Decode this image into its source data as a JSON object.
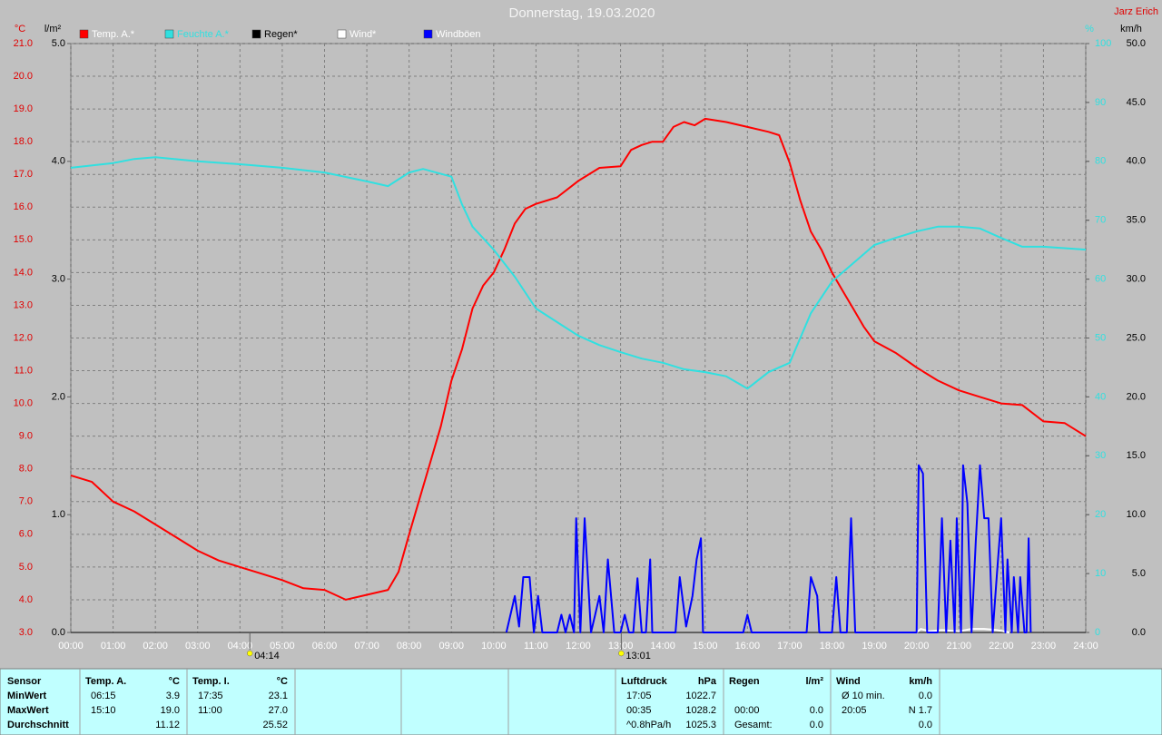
{
  "chart_data": {
    "type": "line",
    "title": "Donnerstag, 19.03.2020",
    "author": "Jarz Erich",
    "grid": true,
    "xlim": [
      0,
      24
    ],
    "xticks": [
      {
        "value": 0,
        "label": "00:00"
      },
      {
        "value": 1,
        "label": "01:00"
      },
      {
        "value": 2,
        "label": "02:00"
      },
      {
        "value": 3,
        "label": "03:00"
      },
      {
        "value": 4,
        "label": "04:00"
      },
      {
        "value": 5,
        "label": "05:00"
      },
      {
        "value": 6,
        "label": "06:00"
      },
      {
        "value": 7,
        "label": "07:00"
      },
      {
        "value": 8,
        "label": "08:00"
      },
      {
        "value": 9,
        "label": "09:00"
      },
      {
        "value": 10,
        "label": "10:00"
      },
      {
        "value": 11,
        "label": "11:00"
      },
      {
        "value": 12,
        "label": "12:00"
      },
      {
        "value": 13,
        "label": "13:00"
      },
      {
        "value": 14,
        "label": "14:00"
      },
      {
        "value": 15,
        "label": "15:00"
      },
      {
        "value": 16,
        "label": "16:00"
      },
      {
        "value": 17,
        "label": "17:00"
      },
      {
        "value": 18,
        "label": "18:00"
      },
      {
        "value": 19,
        "label": "19:00"
      },
      {
        "value": 20,
        "label": "20:00"
      },
      {
        "value": 21,
        "label": "21:00"
      },
      {
        "value": 22,
        "label": "22:00"
      },
      {
        "value": 23,
        "label": "23:00"
      },
      {
        "value": 24,
        "label": "24:00"
      }
    ],
    "axes": [
      {
        "unit": "°C",
        "color": "#e00000",
        "lim": [
          3,
          21
        ],
        "grid": true,
        "ticks": [
          {
            "value": 3,
            "label": "3.0"
          },
          {
            "value": 4,
            "label": "4.0"
          },
          {
            "value": 5,
            "label": "5.0"
          },
          {
            "value": 6,
            "label": "6.0"
          },
          {
            "value": 7,
            "label": "7.0"
          },
          {
            "value": 8,
            "label": "8.0"
          },
          {
            "value": 9,
            "label": "9.0"
          },
          {
            "value": 10,
            "label": "10.0"
          },
          {
            "value": 11,
            "label": "11.0"
          },
          {
            "value": 12,
            "label": "12.0"
          },
          {
            "value": 13,
            "label": "13.0"
          },
          {
            "value": 14,
            "label": "14.0"
          },
          {
            "value": 15,
            "label": "15.0"
          },
          {
            "value": 16,
            "label": "16.0"
          },
          {
            "value": 17,
            "label": "17.0"
          },
          {
            "value": 18,
            "label": "18.0"
          },
          {
            "value": 19,
            "label": "19.0"
          },
          {
            "value": 20,
            "label": "20.0"
          },
          {
            "value": 21,
            "label": "21.0"
          }
        ]
      },
      {
        "unit": "l/m²",
        "color": "#000000",
        "lim": [
          0,
          5
        ],
        "grid": false,
        "ticks": [
          {
            "value": 0,
            "label": "0.0"
          },
          {
            "value": 1,
            "label": "1.0"
          },
          {
            "value": 2,
            "label": "2.0"
          },
          {
            "value": 3,
            "label": "3.0"
          },
          {
            "value": 4,
            "label": "4.0"
          },
          {
            "value": 5,
            "label": "5.0"
          }
        ]
      },
      {
        "unit": "%",
        "color": "#30e0e0",
        "lim": [
          0,
          100
        ],
        "grid": false,
        "ticks": [
          0,
          10,
          20,
          30,
          40,
          50,
          60,
          70,
          80,
          90,
          100
        ]
      },
      {
        "unit": "km/h",
        "color": "#000000",
        "lim": [
          0,
          50
        ],
        "grid": false,
        "ticks": [
          {
            "value": 0,
            "label": "0.0"
          },
          {
            "value": 5,
            "label": "5.0"
          },
          {
            "value": 10,
            "label": "10.0"
          },
          {
            "value": 15,
            "label": "15.0"
          },
          {
            "value": 20,
            "label": "20.0"
          },
          {
            "value": 25,
            "label": "25.0"
          },
          {
            "value": 30,
            "label": "30.0"
          },
          {
            "value": 35,
            "label": "35.0"
          },
          {
            "value": 40,
            "label": "40.0"
          },
          {
            "value": 45,
            "label": "45.0"
          },
          {
            "value": 50,
            "label": "50.0"
          }
        ]
      }
    ],
    "series": [
      {
        "name": "Temp. A.*",
        "color": "#ff0000",
        "legend_text_color": "#ffffff",
        "axis": 0,
        "width": 2,
        "x": [
          0,
          0.5,
          1,
          1.5,
          2,
          2.5,
          3,
          3.5,
          4,
          4.5,
          5,
          5.5,
          6,
          6.5,
          7,
          7.5,
          7.75,
          8,
          8.25,
          8.5,
          8.75,
          9,
          9.25,
          9.5,
          9.75,
          10,
          10.25,
          10.5,
          10.75,
          11,
          11.5,
          12,
          12.5,
          13,
          13.25,
          13.5,
          13.75,
          14,
          14.25,
          14.5,
          14.75,
          15,
          15.5,
          16,
          16.5,
          16.75,
          17,
          17.25,
          17.5,
          17.75,
          18,
          18.25,
          18.5,
          18.75,
          19,
          19.5,
          20,
          20.5,
          21,
          21.5,
          22,
          22.5,
          23,
          23.5,
          24
        ],
        "values": [
          7.8,
          7.6,
          7.0,
          6.7,
          6.3,
          5.9,
          5.5,
          5.2,
          5.0,
          4.8,
          4.6,
          4.35,
          4.3,
          4.0,
          4.15,
          4.3,
          4.85,
          6.0,
          7.1,
          8.2,
          9.3,
          10.7,
          11.65,
          12.9,
          13.6,
          14.0,
          14.7,
          15.5,
          15.95,
          16.1,
          16.3,
          16.8,
          17.2,
          17.25,
          17.75,
          17.9,
          18.0,
          18.0,
          18.45,
          18.6,
          18.5,
          18.7,
          18.6,
          18.45,
          18.3,
          18.2,
          17.35,
          16.2,
          15.25,
          14.7,
          14.0,
          13.45,
          12.9,
          12.35,
          11.9,
          11.55,
          11.1,
          10.7,
          10.4,
          10.2,
          10.0,
          9.95,
          9.45,
          9.4,
          9.0
        ]
      },
      {
        "name": "Feuchte A.*",
        "color": "#30e0e0",
        "legend_text_color": "#30e0e0",
        "axis": 2,
        "width": 2,
        "x": [
          0,
          1,
          1.5,
          2,
          3,
          4,
          5,
          6,
          7,
          7.5,
          8,
          8.33,
          9,
          9.25,
          9.5,
          10,
          10.5,
          11,
          11.5,
          12,
          12.5,
          13,
          13.5,
          14,
          14.5,
          15,
          15.5,
          16,
          16.5,
          17,
          17.5,
          18,
          18.5,
          19,
          19.5,
          20,
          20.5,
          21,
          21.5,
          22,
          22.5,
          23,
          24
        ],
        "values": [
          78.9,
          79.7,
          80.4,
          80.7,
          80.0,
          79.5,
          78.9,
          78.1,
          76.6,
          75.8,
          78.1,
          78.7,
          77.4,
          72.7,
          68.9,
          65.0,
          60.4,
          55.0,
          52.7,
          50.4,
          48.8,
          47.6,
          46.5,
          45.8,
          44.7,
          44.2,
          43.5,
          41.4,
          44.2,
          45.8,
          54.2,
          59.6,
          62.7,
          65.8,
          67.0,
          68.1,
          68.9,
          68.9,
          68.6,
          67.0,
          65.5,
          65.5,
          65.0
        ]
      },
      {
        "name": "Regen*",
        "color": "#000000",
        "legend_text_color": "#000000",
        "axis": 1,
        "width": 1,
        "x": [
          0,
          24
        ],
        "values": [
          0,
          0
        ]
      },
      {
        "name": "Wind*",
        "color": "#ffffff",
        "legend_text_color": "#ffffff",
        "axis": 3,
        "width": 2,
        "x": [
          20,
          20.1,
          20.3,
          20.6,
          21,
          21.3,
          21.6,
          21.9,
          22.2
        ],
        "values": [
          0,
          0.3,
          0.1,
          0.2,
          0.1,
          0.3,
          0.3,
          0.2,
          0
        ]
      },
      {
        "name": "Windböen",
        "color": "#0000ff",
        "legend_text_color": "#ffffff",
        "axis": 3,
        "width": 2,
        "x": [
          10.3,
          10.5,
          10.6,
          10.7,
          10.85,
          10.95,
          11.05,
          11.15,
          11.5,
          11.6,
          11.7,
          11.8,
          11.9,
          11.95,
          12.05,
          12.15,
          12.3,
          12.4,
          12.5,
          12.6,
          12.7,
          12.85,
          13.0,
          13.1,
          13.2,
          13.3,
          13.4,
          13.5,
          13.6,
          13.7,
          13.75,
          14.3,
          14.4,
          14.55,
          14.7,
          14.8,
          14.9,
          14.95,
          15.9,
          16.0,
          16.1,
          17.4,
          17.5,
          17.65,
          17.7,
          18.0,
          18.1,
          18.2,
          18.35,
          18.45,
          18.55,
          20.0,
          20.05,
          20.15,
          20.25,
          20.5,
          20.6,
          20.7,
          20.8,
          20.9,
          20.95,
          21.05,
          21.1,
          21.2,
          21.3,
          21.4,
          21.5,
          21.6,
          21.7,
          21.8,
          21.9,
          22.0,
          22.1,
          22.15,
          22.25,
          22.3,
          22.4,
          22.45,
          22.55,
          22.6,
          22.65,
          22.7
        ],
        "values": [
          0,
          3.1,
          0.5,
          4.7,
          4.7,
          0,
          3.1,
          0,
          0,
          1.5,
          0,
          1.5,
          0,
          9.7,
          0,
          9.7,
          0,
          1.5,
          3.1,
          0,
          6.2,
          0,
          0,
          1.5,
          0,
          0,
          4.6,
          0,
          0,
          6.2,
          0,
          0,
          4.7,
          0.5,
          3.1,
          6.2,
          8.0,
          0,
          0,
          1.5,
          0,
          0,
          4.7,
          3.1,
          0,
          0,
          4.7,
          0,
          0,
          9.7,
          0,
          0,
          14.2,
          13.5,
          0,
          0,
          9.7,
          0,
          7.8,
          0,
          9.7,
          0,
          14.2,
          11,
          0,
          7.8,
          14.2,
          9.7,
          9.7,
          0,
          5,
          9.7,
          0,
          6.2,
          0,
          4.7,
          0,
          4.7,
          0,
          0,
          8,
          0
        ]
      }
    ],
    "annotations": [
      {
        "label": "04:14",
        "x": 4.2333
      },
      {
        "label": "13:01",
        "x": 13.0167
      }
    ]
  },
  "table": {
    "label_column": [
      "Sensor",
      "MinWert",
      "MaxWert",
      "Durchschnitt"
    ],
    "groups": [
      {
        "rows": [
          [
            "Temp. A.",
            "°C"
          ],
          [
            "06:15",
            "3.9"
          ],
          [
            "15:10",
            "19.0"
          ],
          [
            null,
            "11.12"
          ]
        ]
      },
      {
        "rows": [
          [
            "Temp. I.",
            "°C"
          ],
          [
            "17:35",
            "23.1"
          ],
          [
            "11:00",
            "27.0"
          ],
          [
            null,
            "25.52"
          ]
        ]
      },
      {
        "rows": [
          [
            "Luftdruck",
            "hPa"
          ],
          [
            "17:05",
            "1022.7"
          ],
          [
            "00:35",
            "1028.2"
          ],
          [
            "^0.8hPa/h",
            "1025.3"
          ]
        ]
      },
      {
        "rows": [
          [
            "Regen",
            "l/m²"
          ],
          [
            null,
            null
          ],
          [
            "00:00",
            "0.0"
          ],
          [
            "Gesamt:",
            "0.0"
          ]
        ]
      },
      {
        "rows": [
          [
            "Wind",
            "km/h"
          ],
          [
            "Ø 10 min.",
            "0.0"
          ],
          [
            "20:05",
            "N 1.7"
          ],
          [
            null,
            "0.0"
          ]
        ]
      }
    ]
  }
}
